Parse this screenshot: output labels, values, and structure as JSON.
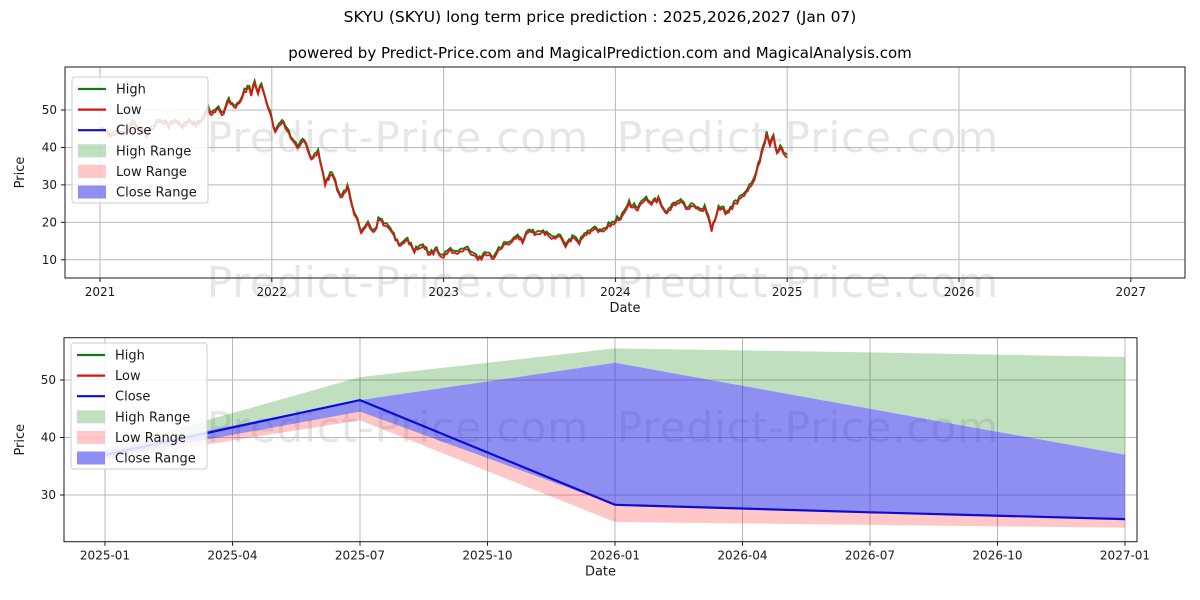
{
  "figure": {
    "title": "SKYU (SKYU) long term price prediction : 2025,2026,2027 (Jan 07)",
    "subtitle": "powered by Predict-Price.com and MagicalPrediction.com and MagicalAnalysis.com",
    "watermark_text": "Predict-Price.com",
    "background_color": "#ffffff",
    "grid_color": "#b8b8b8",
    "spine_color": "#1a1a1a"
  },
  "legend": {
    "items": [
      {
        "label": "High",
        "swatch": "line",
        "color": "#107c10"
      },
      {
        "label": "Low",
        "swatch": "line",
        "color": "#e11212"
      },
      {
        "label": "Close",
        "swatch": "line",
        "color": "#0b0bd6"
      },
      {
        "label": "High Range",
        "swatch": "patch",
        "color": "rgba(0,128,0,0.25)"
      },
      {
        "label": "Low Range",
        "swatch": "patch",
        "color": "rgba(255,40,40,0.26)"
      },
      {
        "label": "Close Range",
        "swatch": "patch",
        "color": "rgba(40,40,230,0.52)"
      }
    ]
  },
  "chart_data": {
    "type": "line",
    "prediction": {
      "x_unit": "months_since_2025_01",
      "close": [
        [
          0,
          37.0
        ],
        [
          6,
          46.5
        ],
        [
          12,
          28.3
        ],
        [
          18,
          27.0
        ],
        [
          24,
          25.8
        ]
      ],
      "close_range_upper": [
        [
          0,
          37.6
        ],
        [
          6,
          46.5
        ],
        [
          12,
          53.0
        ],
        [
          24,
          37.0
        ]
      ],
      "close_range_lower": [
        [
          0,
          36.4
        ],
        [
          6,
          44.5
        ],
        [
          12,
          28.3
        ],
        [
          18,
          27.0
        ],
        [
          24,
          25.8
        ]
      ],
      "high_range_upper": [
        [
          0,
          38.0
        ],
        [
          6,
          50.5
        ],
        [
          12,
          55.5
        ],
        [
          18,
          54.8
        ],
        [
          24,
          54.0
        ]
      ],
      "high_range_lower": [
        [
          0,
          37.6
        ],
        [
          6,
          46.5
        ],
        [
          12,
          53.0
        ],
        [
          24,
          37.0
        ]
      ],
      "low_range_upper": [
        [
          0,
          36.4
        ],
        [
          6,
          44.5
        ],
        [
          12,
          28.3
        ],
        [
          18,
          27.0
        ],
        [
          24,
          25.8
        ]
      ],
      "low_range_lower": [
        [
          0,
          36.0
        ],
        [
          6,
          43.0
        ],
        [
          12,
          25.3
        ],
        [
          24,
          24.3
        ]
      ]
    },
    "historical": {
      "x_unit": "year_fraction",
      "high_minus_low_typical": 0.7,
      "low_anchors": [
        [
          2021.0,
          45.0
        ],
        [
          2021.06,
          42.8
        ],
        [
          2021.1,
          44.5
        ],
        [
          2021.15,
          43.0
        ],
        [
          2021.19,
          46.3
        ],
        [
          2021.23,
          44.8
        ],
        [
          2021.27,
          43.2
        ],
        [
          2021.31,
          45.2
        ],
        [
          2021.35,
          47.4
        ],
        [
          2021.4,
          45.6
        ],
        [
          2021.44,
          46.8
        ],
        [
          2021.48,
          45.2
        ],
        [
          2021.52,
          47.0
        ],
        [
          2021.56,
          45.8
        ],
        [
          2021.6,
          47.2
        ],
        [
          2021.63,
          50.3
        ],
        [
          2021.65,
          48.2
        ],
        [
          2021.69,
          50.8
        ],
        [
          2021.71,
          48.4
        ],
        [
          2021.75,
          52.2
        ],
        [
          2021.79,
          50.2
        ],
        [
          2021.83,
          53.6
        ],
        [
          2021.86,
          56.2
        ],
        [
          2021.88,
          54.0
        ],
        [
          2021.9,
          57.3
        ],
        [
          2021.92,
          54.5
        ],
        [
          2021.94,
          56.8
        ],
        [
          2021.98,
          50.5
        ],
        [
          2022.02,
          44.0
        ],
        [
          2022.06,
          46.8
        ],
        [
          2022.1,
          43.5
        ],
        [
          2022.15,
          39.8
        ],
        [
          2022.19,
          42.0
        ],
        [
          2022.23,
          36.8
        ],
        [
          2022.27,
          38.8
        ],
        [
          2022.31,
          30.2
        ],
        [
          2022.35,
          32.8
        ],
        [
          2022.4,
          26.6
        ],
        [
          2022.44,
          29.2
        ],
        [
          2022.48,
          22.0
        ],
        [
          2022.52,
          17.6
        ],
        [
          2022.56,
          19.6
        ],
        [
          2022.6,
          17.2
        ],
        [
          2022.62,
          20.8
        ],
        [
          2022.67,
          18.8
        ],
        [
          2022.71,
          16.2
        ],
        [
          2022.75,
          13.6
        ],
        [
          2022.79,
          15.2
        ],
        [
          2022.83,
          12.2
        ],
        [
          2022.88,
          13.4
        ],
        [
          2022.92,
          11.2
        ],
        [
          2022.96,
          12.4
        ],
        [
          2023.0,
          10.6
        ],
        [
          2023.04,
          12.6
        ],
        [
          2023.08,
          11.4
        ],
        [
          2023.13,
          12.9
        ],
        [
          2023.17,
          10.9
        ],
        [
          2023.21,
          10.2
        ],
        [
          2023.25,
          11.6
        ],
        [
          2023.29,
          10.4
        ],
        [
          2023.33,
          12.9
        ],
        [
          2023.38,
          14.6
        ],
        [
          2023.42,
          16.1
        ],
        [
          2023.46,
          14.9
        ],
        [
          2023.5,
          17.8
        ],
        [
          2023.54,
          16.4
        ],
        [
          2023.58,
          17.6
        ],
        [
          2023.63,
          15.4
        ],
        [
          2023.67,
          16.6
        ],
        [
          2023.71,
          13.9
        ],
        [
          2023.75,
          15.6
        ],
        [
          2023.79,
          14.6
        ],
        [
          2023.83,
          16.6
        ],
        [
          2023.88,
          18.1
        ],
        [
          2023.92,
          17.1
        ],
        [
          2023.96,
          19.2
        ],
        [
          2024.0,
          19.9
        ],
        [
          2024.04,
          21.6
        ],
        [
          2024.08,
          24.6
        ],
        [
          2024.13,
          23.4
        ],
        [
          2024.17,
          26.1
        ],
        [
          2024.21,
          24.9
        ],
        [
          2024.25,
          25.9
        ],
        [
          2024.29,
          22.4
        ],
        [
          2024.33,
          24.1
        ],
        [
          2024.38,
          25.6
        ],
        [
          2024.42,
          23.1
        ],
        [
          2024.46,
          24.6
        ],
        [
          2024.5,
          22.9
        ],
        [
          2024.52,
          24.2
        ],
        [
          2024.56,
          17.9
        ],
        [
          2024.6,
          23.7
        ],
        [
          2024.65,
          22.4
        ],
        [
          2024.69,
          24.6
        ],
        [
          2024.73,
          26.1
        ],
        [
          2024.77,
          28.6
        ],
        [
          2024.81,
          30.9
        ],
        [
          2024.84,
          36.4
        ],
        [
          2024.86,
          39.6
        ],
        [
          2024.88,
          43.4
        ],
        [
          2024.9,
          40.8
        ],
        [
          2024.92,
          43.2
        ],
        [
          2024.94,
          37.9
        ],
        [
          2024.96,
          40.2
        ],
        [
          2024.98,
          38.3
        ],
        [
          2025.0,
          37.0
        ]
      ]
    },
    "charts": [
      {
        "id": "top",
        "xlabel": "Date",
        "ylabel": "Price",
        "x_tick_values": [
          2021,
          2022,
          2023,
          2024,
          2025,
          2026,
          2027
        ],
        "x_tick_labels": [
          "2021",
          "2022",
          "2023",
          "2024",
          "2025",
          "2026",
          "2027"
        ],
        "y_tick_values": [
          10,
          20,
          30,
          40,
          50
        ],
        "y_tick_labels": [
          "10",
          "20",
          "30",
          "40",
          "50"
        ],
        "grid": true,
        "legend_position": "upper left",
        "shows": [
          "historical",
          "prediction"
        ]
      },
      {
        "id": "bottom",
        "xlabel": "Date",
        "ylabel": "Price",
        "x_tick_values": [
          0,
          3,
          6,
          9,
          12,
          15,
          18,
          21,
          24
        ],
        "x_tick_labels": [
          "2025-01",
          "2025-04",
          "2025-07",
          "2025-10",
          "2026-01",
          "2026-04",
          "2026-07",
          "2026-10",
          "2027-01"
        ],
        "y_tick_values": [
          30,
          40,
          50
        ],
        "y_tick_labels": [
          "30",
          "40",
          "50"
        ],
        "grid": true,
        "legend_position": "upper left",
        "shows": [
          "prediction"
        ]
      }
    ]
  }
}
